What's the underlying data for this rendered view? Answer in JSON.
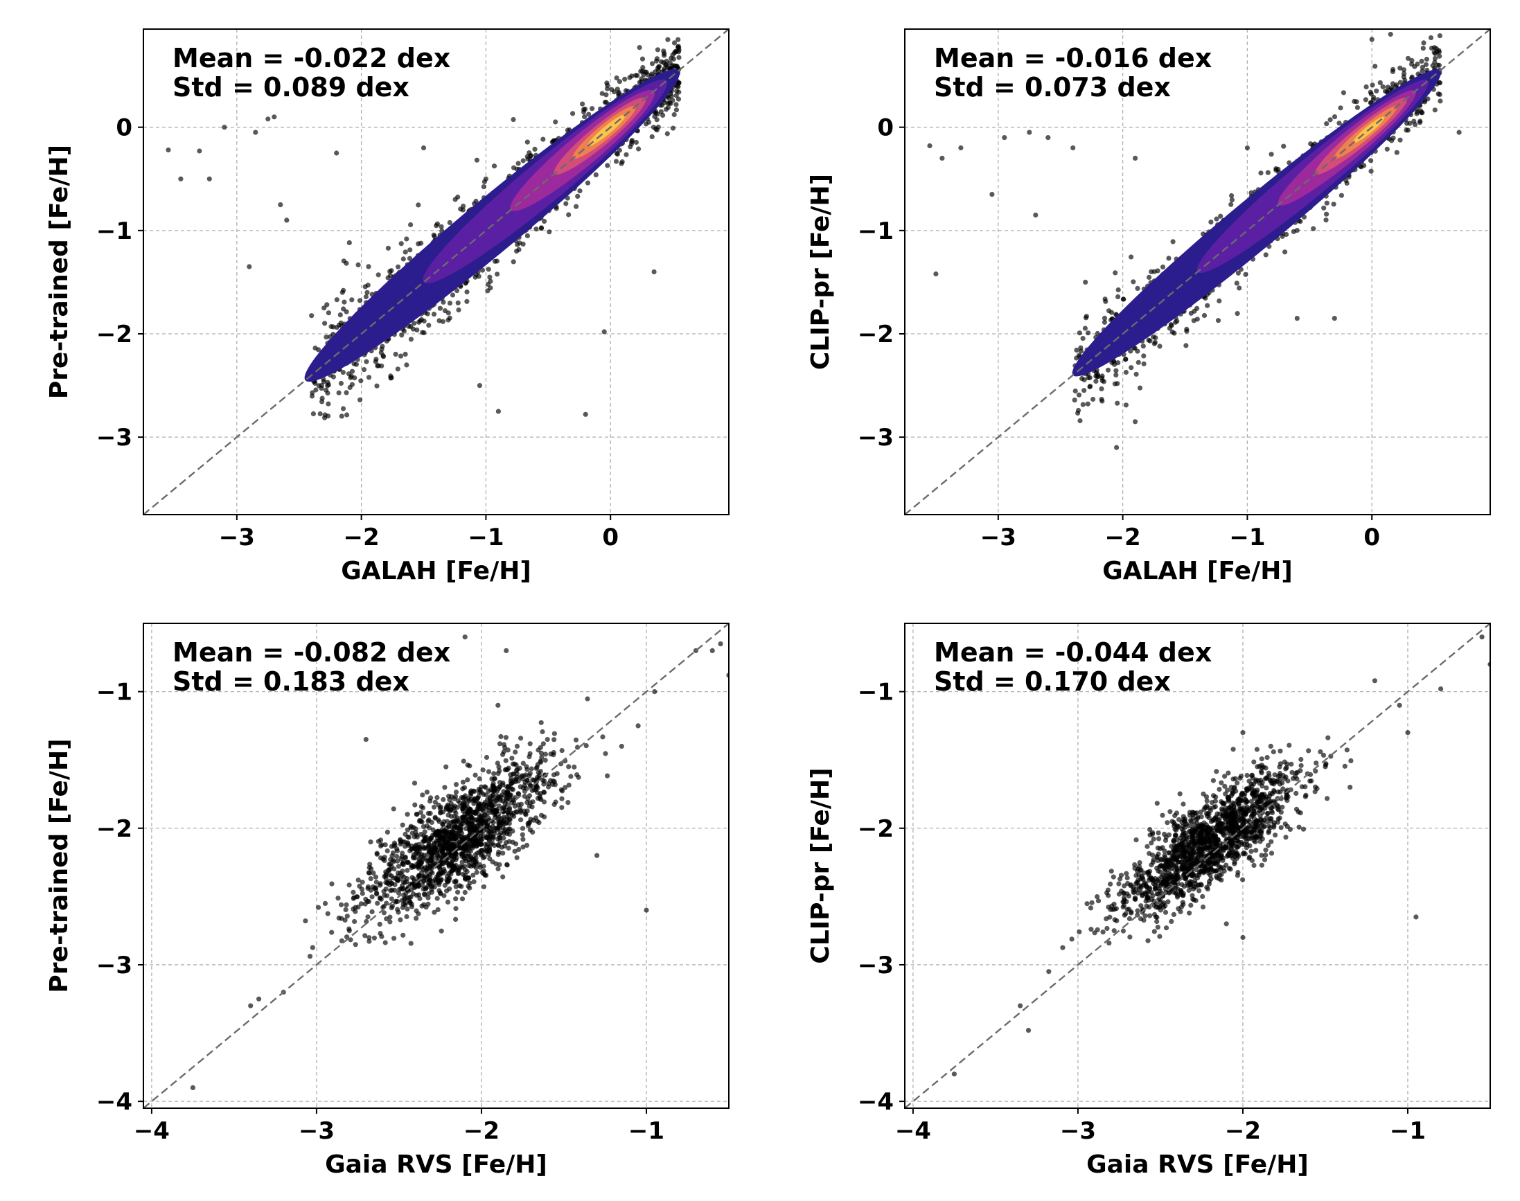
{
  "chart_data": [
    {
      "id": "galah-pretrained",
      "type": "scatter",
      "overlay": "density-contour",
      "xlabel": "GALAH [Fe/H]",
      "ylabel": "Pre-trained [Fe/H]",
      "xlim": [
        -3.75,
        0.95
      ],
      "ylim": [
        -3.75,
        0.95
      ],
      "xticks": [
        -3,
        -2,
        -1,
        0
      ],
      "yticks": [
        -3,
        -2,
        -1,
        0
      ],
      "grid": true,
      "one_to_one_line": true,
      "stats": {
        "mean": "Mean = -0.022 dex",
        "std": "Std = 0.089 dex"
      },
      "cloud": {
        "x_range": [
          -2.4,
          0.55
        ],
        "spread": 0.18,
        "n": 1500,
        "seed": 11
      },
      "outliers": [
        [
          -3.55,
          -0.22
        ],
        [
          -3.45,
          -0.5
        ],
        [
          -3.3,
          -0.23
        ],
        [
          -3.22,
          -0.5
        ],
        [
          -3.1,
          0.0
        ],
        [
          -2.85,
          -0.05
        ],
        [
          -2.75,
          0.08
        ],
        [
          -2.7,
          0.1
        ],
        [
          -2.6,
          -0.9
        ],
        [
          -2.65,
          -0.75
        ],
        [
          -1.05,
          -2.5
        ],
        [
          -0.9,
          -2.75
        ],
        [
          -0.2,
          -2.78
        ],
        [
          -0.05,
          -1.98
        ],
        [
          0.35,
          -1.4
        ],
        [
          -1.0,
          -0.5
        ],
        [
          -1.5,
          -0.2
        ],
        [
          -2.2,
          -0.25
        ],
        [
          -2.9,
          -1.35
        ],
        [
          -2.3,
          -1.75
        ]
      ],
      "density": [
        {
          "x0": -2.45,
          "x1": 0.55,
          "w": 0.26,
          "color": "#2c1d8f"
        },
        {
          "x0": -1.5,
          "x1": 0.45,
          "w": 0.2,
          "color": "#5b1fa3"
        },
        {
          "x0": -0.8,
          "x1": 0.35,
          "w": 0.15,
          "color": "#9c2a9c"
        },
        {
          "x0": -0.45,
          "x1": 0.28,
          "w": 0.1,
          "color": "#d34d78"
        },
        {
          "x0": -0.3,
          "x1": 0.2,
          "w": 0.07,
          "color": "#f0814f"
        },
        {
          "x0": -0.18,
          "x1": 0.12,
          "w": 0.04,
          "color": "#fbc34a"
        }
      ]
    },
    {
      "id": "galah-clip",
      "type": "scatter",
      "overlay": "density-contour",
      "xlabel": "GALAH [Fe/H]",
      "ylabel": "CLIP-pr [Fe/H]",
      "xlim": [
        -3.75,
        0.95
      ],
      "ylim": [
        -3.75,
        0.95
      ],
      "xticks": [
        -3,
        -2,
        -1,
        0
      ],
      "yticks": [
        -3,
        -2,
        -1,
        0
      ],
      "grid": true,
      "one_to_one_line": true,
      "stats": {
        "mean": "Mean = -0.016 dex",
        "std": "Std = 0.073 dex"
      },
      "cloud": {
        "x_range": [
          -2.4,
          0.55
        ],
        "spread": 0.15,
        "n": 1400,
        "seed": 23
      },
      "outliers": [
        [
          -3.55,
          -0.18
        ],
        [
          -3.45,
          -0.3
        ],
        [
          -3.5,
          -1.42
        ],
        [
          -3.3,
          -0.2
        ],
        [
          -3.05,
          -0.65
        ],
        [
          -2.95,
          -0.1
        ],
        [
          -2.75,
          -0.05
        ],
        [
          -2.7,
          -0.85
        ],
        [
          -2.6,
          -0.1
        ],
        [
          -2.4,
          -0.2
        ],
        [
          -2.05,
          -3.1
        ],
        [
          -1.9,
          -0.3
        ],
        [
          -1.0,
          -0.2
        ],
        [
          -0.3,
          -1.85
        ],
        [
          0.0,
          0.85
        ],
        [
          0.15,
          0.9
        ],
        [
          0.7,
          -0.05
        ],
        [
          -1.9,
          -2.85
        ],
        [
          -0.6,
          -1.85
        ],
        [
          -2.3,
          -1.5
        ]
      ],
      "density": [
        {
          "x0": -2.4,
          "x1": 0.55,
          "w": 0.24,
          "color": "#2c1d8f"
        },
        {
          "x0": -1.4,
          "x1": 0.45,
          "w": 0.18,
          "color": "#5b1fa3"
        },
        {
          "x0": -0.75,
          "x1": 0.35,
          "w": 0.13,
          "color": "#9c2a9c"
        },
        {
          "x0": -0.45,
          "x1": 0.28,
          "w": 0.09,
          "color": "#d34d78"
        },
        {
          "x0": -0.3,
          "x1": 0.2,
          "w": 0.06,
          "color": "#f0814f"
        },
        {
          "x0": -0.15,
          "x1": 0.1,
          "w": 0.035,
          "color": "#fbc34a"
        }
      ]
    },
    {
      "id": "gaia-pretrained",
      "type": "scatter",
      "xlabel": "Gaia RVS [Fe/H]",
      "ylabel": "Pre-trained [Fe/H]",
      "xlim": [
        -4.05,
        -0.5
      ],
      "ylim": [
        -4.05,
        -0.5
      ],
      "xticks": [
        -4,
        -3,
        -2,
        -1
      ],
      "yticks": [
        -4,
        -3,
        -2,
        -1
      ],
      "grid": true,
      "one_to_one_line": true,
      "stats": {
        "mean": "Mean = -0.082 dex",
        "std": "Std = 0.183 dex"
      },
      "cloud": {
        "center": [
          -2.15,
          -2.08
        ],
        "sd_major": 0.38,
        "sd_minor": 0.14,
        "n": 1500,
        "seed": 37
      },
      "outliers": [
        [
          -3.75,
          -3.9
        ],
        [
          -3.4,
          -3.3
        ],
        [
          -3.35,
          -3.25
        ],
        [
          -3.2,
          -3.2
        ],
        [
          -1.0,
          -2.6
        ],
        [
          -0.55,
          -0.65
        ],
        [
          -0.6,
          -0.7
        ],
        [
          -0.5,
          -0.88
        ],
        [
          -0.7,
          -0.7
        ],
        [
          -0.95,
          -1.0
        ],
        [
          -1.05,
          -1.25
        ],
        [
          -1.15,
          -1.4
        ],
        [
          -2.1,
          -0.6
        ],
        [
          -1.85,
          -0.7
        ],
        [
          -1.6,
          -1.35
        ],
        [
          -1.3,
          -2.2
        ],
        [
          -1.9,
          -1.1
        ],
        [
          -2.7,
          -1.35
        ]
      ]
    },
    {
      "id": "gaia-clip",
      "type": "scatter",
      "xlabel": "Gaia RVS [Fe/H]",
      "ylabel": "CLIP-pr [Fe/H]",
      "xlim": [
        -4.05,
        -0.5
      ],
      "ylim": [
        -4.05,
        -0.5
      ],
      "xticks": [
        -4,
        -3,
        -2,
        -1
      ],
      "yticks": [
        -4,
        -3,
        -2,
        -1
      ],
      "grid": true,
      "one_to_one_line": true,
      "stats": {
        "mean": "Mean = -0.044 dex",
        "std": "Std = 0.170 dex"
      },
      "cloud": {
        "center": [
          -2.2,
          -2.1
        ],
        "sd_major": 0.36,
        "sd_minor": 0.12,
        "n": 1500,
        "seed": 41
      },
      "outliers": [
        [
          -3.75,
          -3.8
        ],
        [
          -3.3,
          -3.48
        ],
        [
          -3.35,
          -3.3
        ],
        [
          -0.95,
          -2.65
        ],
        [
          -0.55,
          -0.6
        ],
        [
          -0.5,
          -0.8
        ],
        [
          -0.8,
          -0.98
        ],
        [
          -1.2,
          -0.92
        ],
        [
          -1.05,
          -1.1
        ],
        [
          -1.0,
          -1.3
        ],
        [
          -2.0,
          -1.3
        ],
        [
          -1.35,
          -1.7
        ],
        [
          -1.5,
          -1.55
        ],
        [
          -2.0,
          -2.8
        ],
        [
          -2.1,
          -2.7
        ]
      ]
    }
  ]
}
